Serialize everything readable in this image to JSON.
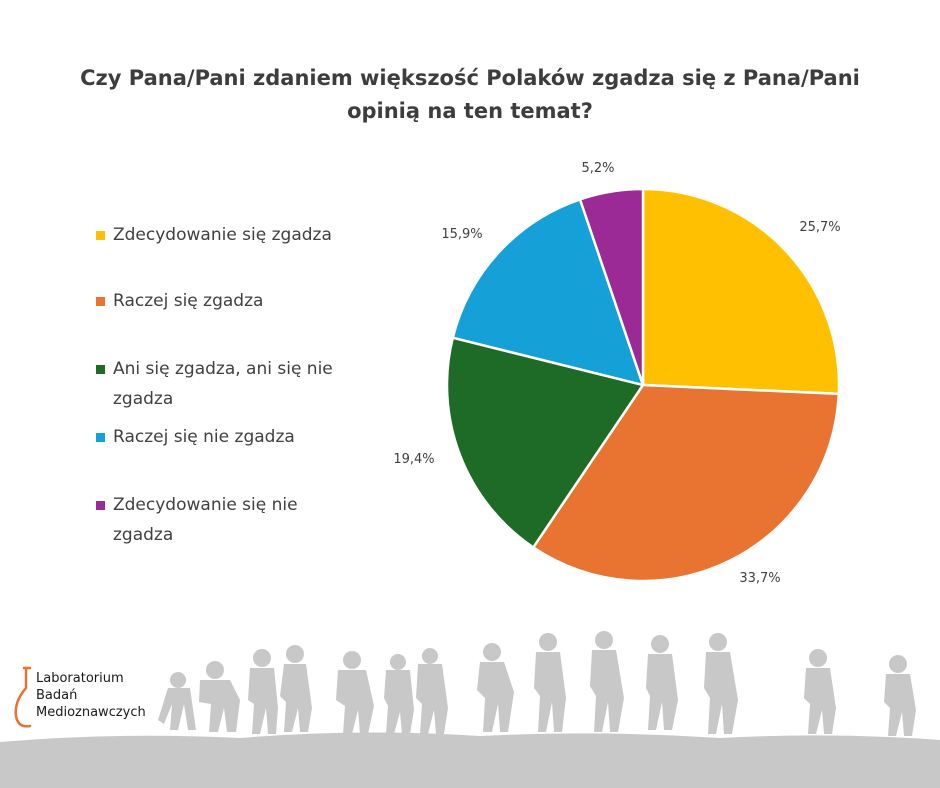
{
  "title": "Czy Pana/Pani zdaniem większość Polaków zgadza się z Pana/Pani opinią na ten temat?",
  "colors": {
    "title": "#3d3d3d",
    "text": "#404040",
    "silhouette": "#c8c8c8",
    "logo_accent": "#e8732e"
  },
  "chart_data": {
    "type": "pie",
    "title": "Czy Pana/Pani zdaniem większość Polaków zgadza się z Pana/Pani opinią na ten temat?",
    "legend_position": "left",
    "start_angle": "top, clockwise",
    "slices": [
      {
        "label": "Zdecydowanie się zgadza",
        "value": 25.7,
        "value_label": "25,7%",
        "color": "#fec000"
      },
      {
        "label": "Raczej się zgadza",
        "value": 33.7,
        "value_label": "33,7%",
        "color": "#e97331"
      },
      {
        "label": "Ani się zgadza, ani się nie zgadza",
        "value": 19.4,
        "value_label": "19,4%",
        "color": "#1e6b27"
      },
      {
        "label": "Raczej się nie zgadza",
        "value": 15.9,
        "value_label": "15,9%",
        "color": "#16a0d8"
      },
      {
        "label": "Zdecydowanie się nie zgadza",
        "value": 5.2,
        "value_label": "5,2%",
        "color": "#9b2a96"
      }
    ]
  },
  "legend_lines": [
    [
      "Zdecydowanie się zgadza"
    ],
    [
      "Raczej się zgadza"
    ],
    [
      "Ani się zgadza, ani się nie",
      "zgadza"
    ],
    [
      "Raczej się nie zgadza"
    ],
    [
      "Zdecydowanie się nie",
      "zgadza"
    ]
  ],
  "logo": {
    "line1": "Laboratorium",
    "line2": "Badań",
    "line3": "Medioznawczych"
  }
}
